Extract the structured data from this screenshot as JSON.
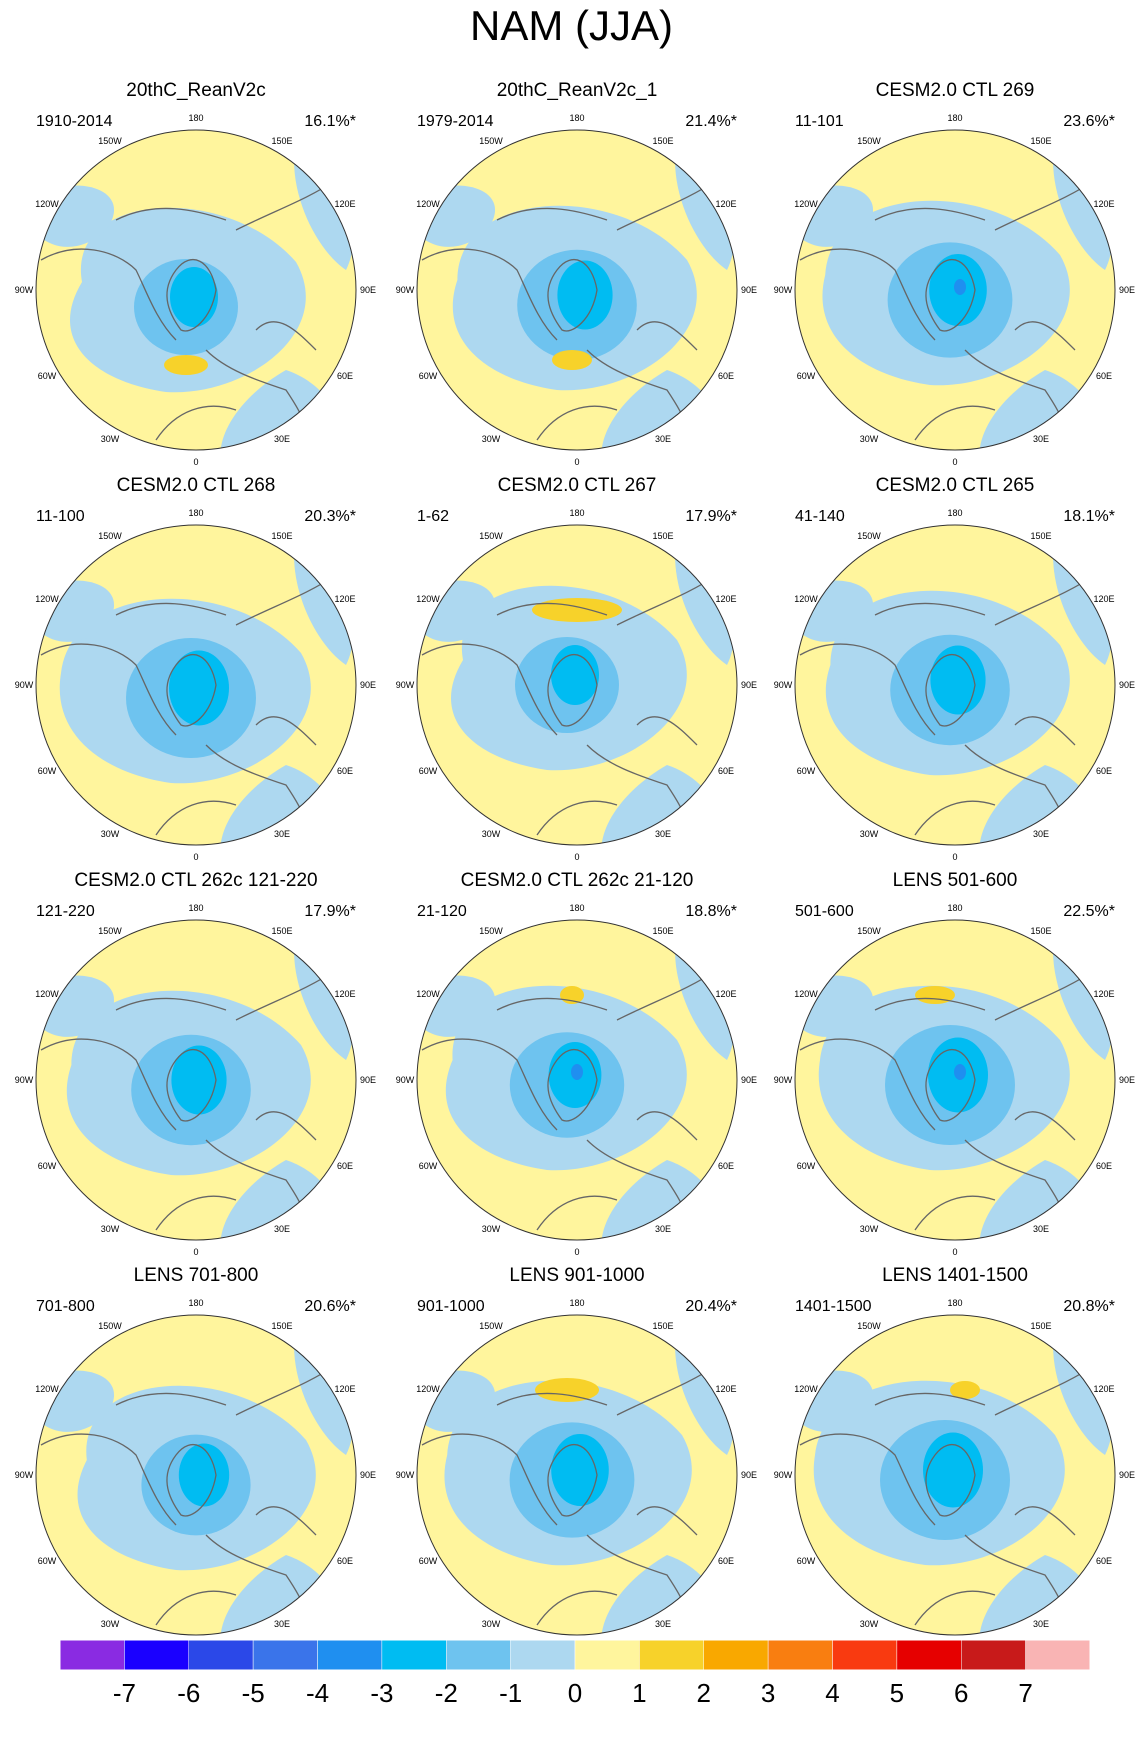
{
  "title": "NAM (JJA)",
  "colors": {
    "land_outline": "#666666",
    "neg3": "#00bcf2",
    "neg2": "#6ec3ef",
    "neg1": "#add8f0",
    "pos1": "#fff59d",
    "pos2": "#f7d22a",
    "neg4": "#1f8ff0",
    "circle": "#333333"
  },
  "longitude_labels": [
    "180",
    "150E",
    "120E",
    "90E",
    "60E",
    "30E",
    "0",
    "30W",
    "60W",
    "90W",
    "120W",
    "150W"
  ],
  "panels": [
    {
      "title": "20thC_ReanV2c",
      "period": "1910-2014",
      "variance": "16.1%*"
    },
    {
      "title": "20thC_ReanV2c_1",
      "period": "1979-2014",
      "variance": "21.4%*"
    },
    {
      "title": "CESM2.0 CTL 269",
      "period": "11-101",
      "variance": "23.6%*"
    },
    {
      "title": "CESM2.0 CTL 268",
      "period": "11-100",
      "variance": "20.3%*"
    },
    {
      "title": "CESM2.0 CTL 267",
      "period": "1-62",
      "variance": "17.9%*"
    },
    {
      "title": "CESM2.0 CTL 265",
      "period": "41-140",
      "variance": "18.1%*"
    },
    {
      "title": "CESM2.0 CTL 262c 121-220",
      "period": "121-220",
      "variance": "17.9%*"
    },
    {
      "title": "CESM2.0 CTL 262c 21-120",
      "period": "21-120",
      "variance": "18.8%*"
    },
    {
      "title": "LENS 501-600",
      "period": "501-600",
      "variance": "22.5%*"
    },
    {
      "title": "LENS 701-800",
      "period": "701-800",
      "variance": "20.6%*"
    },
    {
      "title": "LENS 901-1000",
      "period": "901-1000",
      "variance": "20.4%*"
    },
    {
      "title": "LENS 1401-1500",
      "period": "1401-1500",
      "variance": "20.8%*"
    }
  ],
  "chart_data": {
    "type": "heatmap",
    "title": "NAM (JJA)",
    "projection": "north polar stereographic",
    "colorbar": {
      "ticks": [
        "-7",
        "-6",
        "-5",
        "-4",
        "-3",
        "-2",
        "-1",
        "0",
        "1",
        "2",
        "3",
        "4",
        "5",
        "6",
        "7"
      ],
      "colors": [
        "#8a2be2",
        "#1a00ff",
        "#2b48e8",
        "#3a74ea",
        "#1f8ff0",
        "#00bcf2",
        "#6ec3ef",
        "#add8f0",
        "#fff59d",
        "#f7d22a",
        "#f9a800",
        "#f97e10",
        "#f93a10",
        "#e60000",
        "#c81a1a",
        "#f9b4b4"
      ]
    }
  }
}
